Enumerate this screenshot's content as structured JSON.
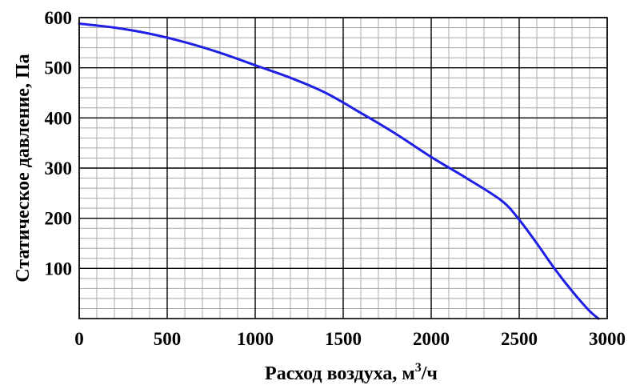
{
  "chart_data": {
    "type": "line",
    "title": "",
    "xlabel": "Расход воздуха, м",
    "xlabel_sup": "3",
    "xlabel_suffix": "/ч",
    "ylabel": "Статическое давление, Па",
    "xlim": [
      0,
      3000
    ],
    "ylim": [
      0,
      600
    ],
    "x_ticks": [
      0,
      500,
      1000,
      1500,
      2000,
      2500,
      3000
    ],
    "x_tick_labels": [
      "0",
      "500",
      "1000",
      "1500",
      "2000",
      "2500",
      "3000"
    ],
    "y_ticks": [
      100,
      200,
      300,
      400,
      500,
      600
    ],
    "y_tick_labels": [
      "100",
      "200",
      "300",
      "400",
      "500",
      "600"
    ],
    "x_minor_step": 100,
    "y_minor_step": 20,
    "grid": true,
    "series": [
      {
        "color": "#1f1fe6",
        "x": [
          0,
          200,
          400,
          600,
          800,
          1000,
          1200,
          1400,
          1600,
          1800,
          2000,
          2200,
          2400,
          2500,
          2600,
          2700,
          2800,
          2900,
          2950
        ],
        "y": [
          588,
          580,
          568,
          551,
          530,
          505,
          480,
          450,
          410,
          368,
          322,
          280,
          235,
          197,
          150,
          100,
          55,
          15,
          0
        ]
      }
    ]
  }
}
